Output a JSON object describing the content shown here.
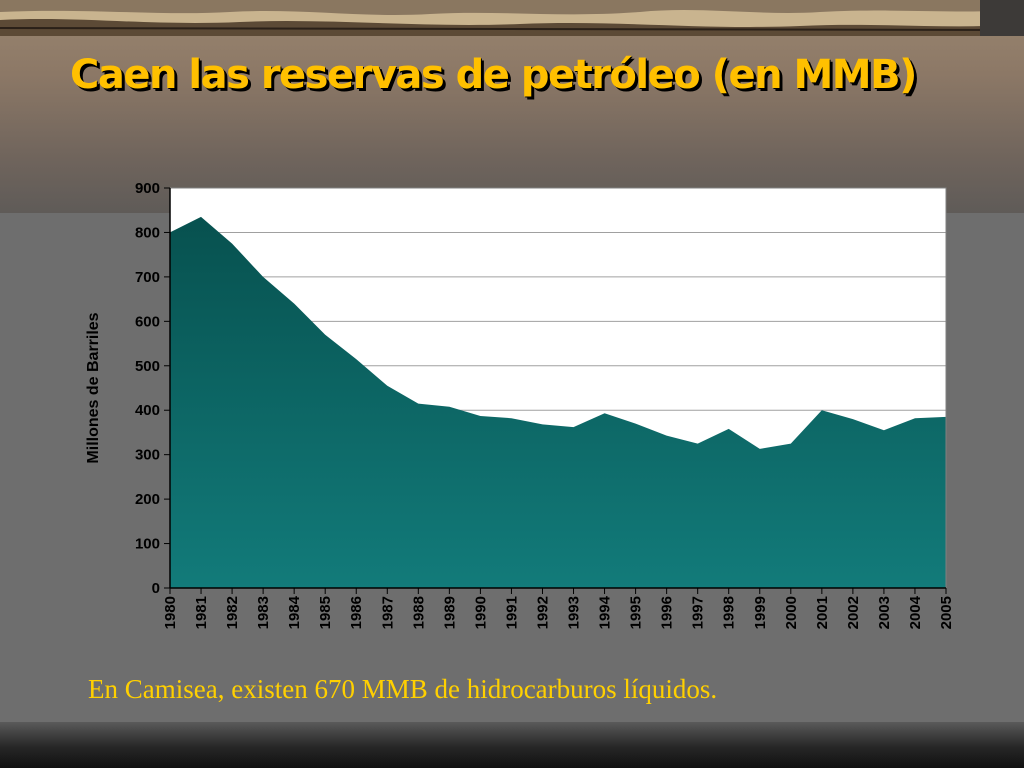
{
  "slide": {
    "title": "Caen las reservas de petróleo (en MMB)",
    "caption": "En Camisea, existen 670 MMB de hidrocarburos líquidos."
  },
  "colors": {
    "title": "#ffc000",
    "caption": "#ffd000",
    "area_top": "#07514f",
    "area_bottom": "#127b7a",
    "plot_bg": "#ffffff",
    "grid": "#a0a0a0"
  },
  "chart_data": {
    "type": "area",
    "title": "",
    "xlabel": "",
    "ylabel": "Millones de Barriles",
    "ylim": [
      0,
      900
    ],
    "yticks": [
      0,
      100,
      200,
      300,
      400,
      500,
      600,
      700,
      800,
      900
    ],
    "grid": true,
    "x": [
      "1980",
      "1981",
      "1982",
      "1983",
      "1984",
      "1985",
      "1986",
      "1987",
      "1988",
      "1989",
      "1990",
      "1991",
      "1992",
      "1993",
      "1994",
      "1995",
      "1996",
      "1997",
      "1998",
      "1999",
      "2000",
      "2001",
      "2002",
      "2003",
      "2004",
      "2005"
    ],
    "series": [
      {
        "values": [
          800,
          835,
          775,
          700,
          640,
          570,
          515,
          455,
          415,
          408,
          387,
          382,
          368,
          362,
          393,
          370,
          343,
          325,
          358,
          313,
          325,
          400,
          380,
          355,
          382,
          385
        ]
      }
    ]
  }
}
